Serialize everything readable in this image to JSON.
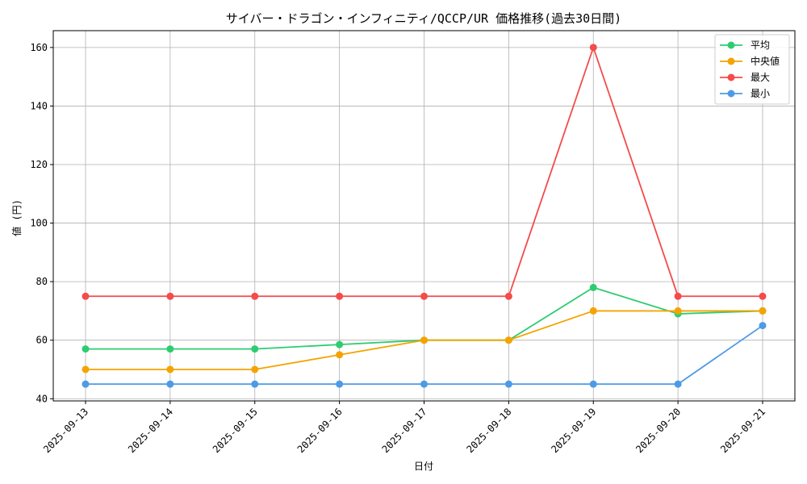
{
  "chart_data": {
    "type": "line",
    "title": "サイバー・ドラゴン・インフィニティ/QCCP/UR 価格推移(過去30日間)",
    "xlabel": "日付",
    "ylabel": "値 (円)",
    "categories": [
      "2025-09-13",
      "2025-09-14",
      "2025-09-15",
      "2025-09-16",
      "2025-09-17",
      "2025-09-18",
      "2025-09-19",
      "2025-09-20",
      "2025-09-21"
    ],
    "ylim": [
      39.25,
      165.75
    ],
    "yticks": [
      40,
      60,
      80,
      100,
      120,
      140,
      160
    ],
    "grid": true,
    "legend_position": "top-right",
    "series": [
      {
        "name": "平均",
        "color": "#2ecc71",
        "values": [
          57,
          57,
          57,
          58.5,
          60,
          60,
          78,
          69,
          70
        ]
      },
      {
        "name": "中央値",
        "color": "#f5a300",
        "values": [
          50,
          50,
          50,
          55,
          60,
          60,
          70,
          70,
          70
        ]
      },
      {
        "name": "最大",
        "color": "#f44b4b",
        "values": [
          75,
          75,
          75,
          75,
          75,
          75,
          160,
          75,
          75
        ]
      },
      {
        "name": "最小",
        "color": "#4d9be6",
        "values": [
          45,
          45,
          45,
          45,
          45,
          45,
          45,
          45,
          65
        ]
      }
    ]
  }
}
